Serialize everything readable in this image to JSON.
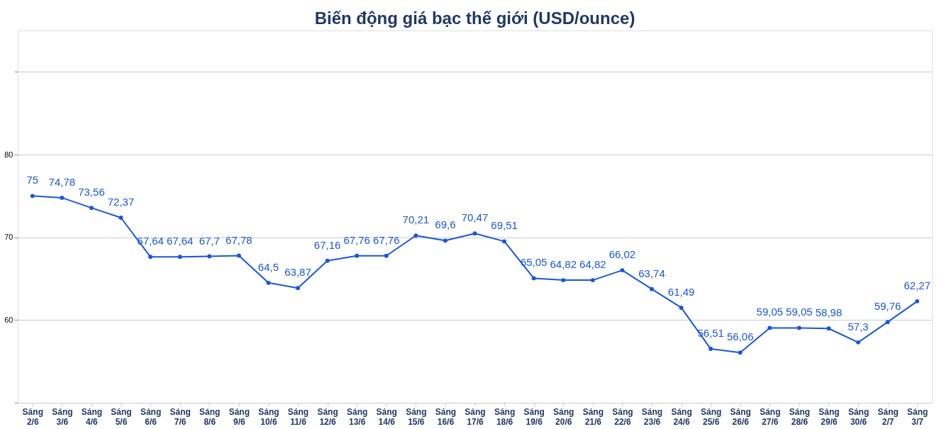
{
  "chart_data": {
    "type": "line",
    "title": "Biến động giá bạc thế giới (USD/ounce)",
    "categories": [
      "Sáng 2/6",
      "Sáng 3/6",
      "Sáng 4/6",
      "Sáng 5/6",
      "Sáng 6/6",
      "Sáng 7/6",
      "Sáng 8/6",
      "Sáng 9/6",
      "Sáng 10/6",
      "Sáng 11/6",
      "Sáng 12/6",
      "Sáng 13/6",
      "Sáng 14/6",
      "Sáng 15/6",
      "Sáng 16/6",
      "Sáng 17/6",
      "Sáng 18/6",
      "Sáng 19/6",
      "Sáng 20/6",
      "Sáng 21/6",
      "Sáng 22/6",
      "Sáng 23/6",
      "Sáng 24/6",
      "Sáng 25/6",
      "Sáng 26/6",
      "Sáng 27/6",
      "Sáng 28/6",
      "Sáng 29/6",
      "Sáng 30/6",
      "Sáng 2/7",
      "Sáng 3/7"
    ],
    "series": [
      {
        "color": "#1a56db",
        "values": [
          75,
          74.78,
          73.56,
          72.37,
          67.64,
          67.64,
          67.7,
          67.78,
          64.5,
          63.87,
          67.16,
          67.76,
          67.76,
          70.21,
          69.6,
          70.47,
          69.51,
          65.05,
          64.82,
          64.82,
          66.02,
          63.74,
          61.49,
          56.51,
          56.06,
          59.05,
          59.05,
          58.98,
          57.3,
          59.76,
          62.27
        ],
        "value_labels": [
          "75",
          "74,78",
          "73,56",
          "72,37",
          "67,64",
          "67,64",
          "67,7",
          "67,78",
          "64,5",
          "63,87",
          "67,16",
          "67,76",
          "67,76",
          "70,21",
          "69,6",
          "70,47",
          "69,51",
          "65,05",
          "64,82",
          "64,82",
          "66,02",
          "63,74",
          "61,49",
          "56,51",
          "56,06",
          "59,05",
          "59,05",
          "58,98",
          "57,3",
          "59,76",
          "62,27"
        ]
      }
    ],
    "ylim": [
      50,
      95
    ],
    "yticks": [
      {
        "value": 50,
        "label": null
      },
      60,
      70,
      80,
      {
        "value": 90,
        "label": null
      }
    ],
    "grid": "y",
    "marker": "circle",
    "line_style": "solid"
  }
}
